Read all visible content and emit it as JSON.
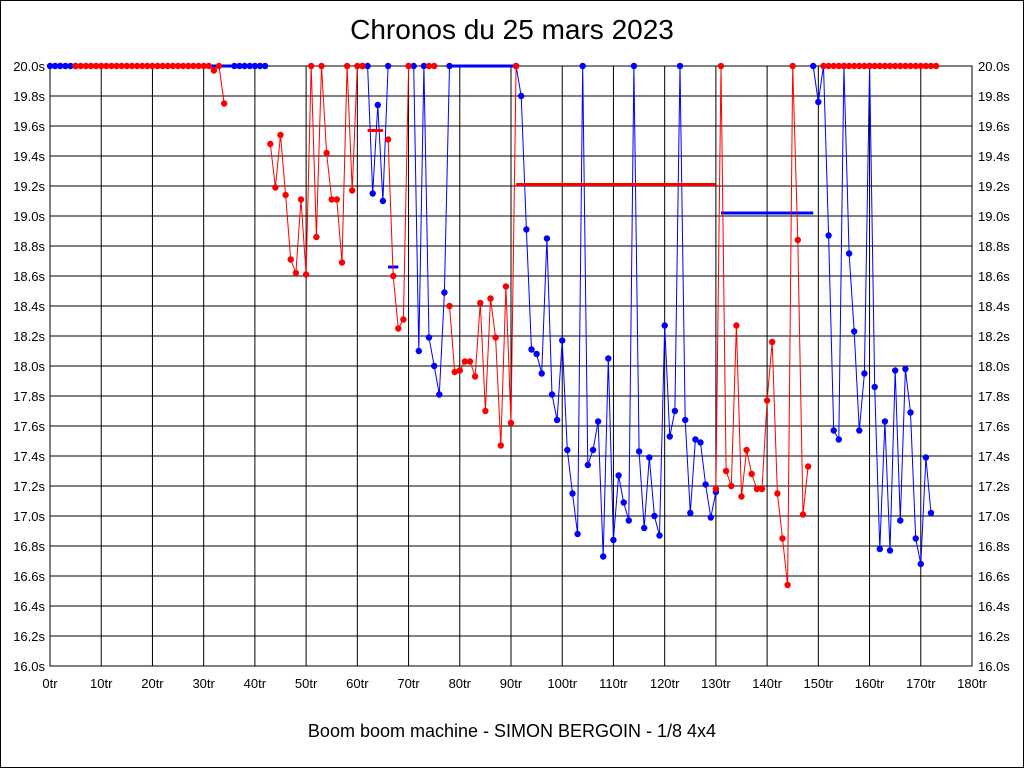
{
  "chart_data": {
    "type": "line",
    "title": "Chronos du 25 mars 2023",
    "subtitle": "Boom boom machine - SIMON BERGOIN - 1/8 4x4",
    "xlabel": "",
    "ylabel": "",
    "xlim": [
      0,
      180
    ],
    "ylim": [
      16.0,
      20.0
    ],
    "grid": true,
    "legend": "none",
    "x_ticks": [
      "0tr",
      "10tr",
      "20tr",
      "30tr",
      "40tr",
      "50tr",
      "60tr",
      "70tr",
      "80tr",
      "90tr",
      "100tr",
      "110tr",
      "120tr",
      "130tr",
      "140tr",
      "150tr",
      "160tr",
      "170tr",
      "180tr"
    ],
    "y_ticks": [
      "16.0s",
      "16.2s",
      "16.4s",
      "16.6s",
      "16.8s",
      "17.0s",
      "17.2s",
      "17.4s",
      "17.6s",
      "17.8s",
      "18.0s",
      "18.2s",
      "18.4s",
      "18.6s",
      "18.8s",
      "19.0s",
      "19.2s",
      "19.4s",
      "19.6s",
      "19.8s",
      "20.0s"
    ],
    "series": [
      {
        "color": "#0000ff",
        "segments": [
          [
            [
              0,
              20.0
            ],
            [
              1,
              20.0
            ],
            [
              2,
              20.0
            ],
            [
              3,
              20.0
            ],
            [
              4,
              20.0
            ],
            [
              5,
              20.0
            ]
          ],
          [
            [
              36,
              20.0
            ],
            [
              37,
              20.0
            ],
            [
              38,
              20.0
            ],
            [
              39,
              20.0
            ],
            [
              40,
              20.0
            ],
            [
              41,
              20.0
            ],
            [
              42,
              20.0
            ]
          ],
          [
            [
              61,
              20.0
            ],
            [
              62,
              20.0
            ],
            [
              63,
              19.15
            ],
            [
              64,
              19.74
            ],
            [
              65,
              19.1
            ],
            [
              66,
              20.0
            ]
          ],
          [
            [
              70,
              20.0
            ],
            [
              71,
              20.0
            ],
            [
              72,
              18.1
            ],
            [
              73,
              20.0
            ],
            [
              74,
              18.19
            ],
            [
              75,
              18.0
            ],
            [
              76,
              17.81
            ],
            [
              77,
              18.49
            ],
            [
              78,
              20.0
            ]
          ],
          [
            [
              91,
              20.0
            ],
            [
              92,
              19.8
            ],
            [
              93,
              18.91
            ],
            [
              94,
              18.11
            ],
            [
              95,
              18.08
            ],
            [
              96,
              17.95
            ],
            [
              97,
              18.85
            ],
            [
              98,
              17.81
            ],
            [
              99,
              17.64
            ],
            [
              100,
              18.17
            ],
            [
              101,
              17.44
            ],
            [
              102,
              17.15
            ],
            [
              103,
              16.88
            ],
            [
              104,
              20.0
            ],
            [
              105,
              17.34
            ],
            [
              106,
              17.44
            ],
            [
              107,
              17.63
            ],
            [
              108,
              16.73
            ],
            [
              109,
              18.05
            ],
            [
              110,
              16.84
            ],
            [
              111,
              17.27
            ],
            [
              112,
              17.09
            ],
            [
              113,
              16.97
            ],
            [
              114,
              20.0
            ],
            [
              115,
              17.43
            ],
            [
              116,
              16.92
            ],
            [
              117,
              17.39
            ],
            [
              118,
              17.0
            ],
            [
              119,
              16.87
            ],
            [
              120,
              18.27
            ],
            [
              121,
              17.53
            ],
            [
              122,
              17.7
            ],
            [
              123,
              20.0
            ],
            [
              124,
              17.64
            ],
            [
              125,
              17.02
            ],
            [
              126,
              17.51
            ],
            [
              127,
              17.49
            ],
            [
              128,
              17.21
            ],
            [
              129,
              16.99
            ],
            [
              130,
              17.16
            ]
          ],
          [
            [
              149,
              20.0
            ],
            [
              150,
              19.76
            ],
            [
              151,
              20.0
            ],
            [
              152,
              18.87
            ],
            [
              153,
              17.57
            ],
            [
              154,
              17.51
            ],
            [
              155,
              20.0
            ],
            [
              156,
              18.75
            ],
            [
              157,
              18.23
            ],
            [
              158,
              17.57
            ],
            [
              159,
              17.95
            ],
            [
              160,
              20.0
            ],
            [
              161,
              17.86
            ],
            [
              162,
              16.78
            ],
            [
              163,
              17.63
            ],
            [
              164,
              16.77
            ],
            [
              165,
              17.97
            ],
            [
              166,
              16.97
            ],
            [
              167,
              17.98
            ],
            [
              168,
              17.69
            ],
            [
              169,
              16.85
            ],
            [
              170,
              16.68
            ],
            [
              171,
              17.39
            ],
            [
              172,
              17.02
            ]
          ]
        ],
        "averages": [
          {
            "from": 5,
            "to": 42,
            "value": 20.0
          },
          {
            "from": 66,
            "to": 68,
            "value": 18.66
          },
          {
            "from": 78,
            "to": 91,
            "value": 20.0
          },
          {
            "from": 131,
            "to": 149,
            "value": 19.02
          }
        ]
      },
      {
        "color": "#ff0000",
        "segments": [
          [
            [
              5,
              20.0
            ],
            [
              6,
              20.0
            ],
            [
              7,
              20.0
            ],
            [
              8,
              20.0
            ],
            [
              9,
              20.0
            ],
            [
              10,
              20.0
            ],
            [
              11,
              20.0
            ],
            [
              12,
              20.0
            ],
            [
              13,
              20.0
            ],
            [
              14,
              20.0
            ],
            [
              15,
              20.0
            ],
            [
              16,
              20.0
            ],
            [
              17,
              20.0
            ],
            [
              18,
              20.0
            ],
            [
              19,
              20.0
            ],
            [
              20,
              20.0
            ],
            [
              21,
              20.0
            ],
            [
              22,
              20.0
            ],
            [
              23,
              20.0
            ],
            [
              24,
              20.0
            ],
            [
              25,
              20.0
            ],
            [
              26,
              20.0
            ],
            [
              27,
              20.0
            ],
            [
              28,
              20.0
            ],
            [
              29,
              20.0
            ],
            [
              30,
              20.0
            ],
            [
              31,
              20.0
            ],
            [
              32,
              19.97
            ],
            [
              33,
              20.0
            ],
            [
              34,
              19.75
            ]
          ],
          [
            [
              43,
              19.48
            ],
            [
              44,
              19.19
            ],
            [
              45,
              19.54
            ],
            [
              46,
              19.14
            ],
            [
              47,
              18.71
            ],
            [
              48,
              18.62
            ],
            [
              49,
              19.11
            ],
            [
              50,
              18.61
            ],
            [
              51,
              20.0
            ],
            [
              52,
              18.86
            ],
            [
              53,
              20.0
            ],
            [
              54,
              19.42
            ],
            [
              55,
              19.11
            ],
            [
              56,
              19.11
            ],
            [
              57,
              18.69
            ],
            [
              58,
              20.0
            ],
            [
              59,
              19.17
            ],
            [
              60,
              20.0
            ],
            [
              61,
              20.0
            ]
          ],
          [
            [
              66,
              19.51
            ],
            [
              67,
              18.6
            ],
            [
              68,
              18.25
            ],
            [
              69,
              18.31
            ],
            [
              70,
              20.0
            ]
          ],
          [
            [
              74,
              20.0
            ],
            [
              75,
              20.0
            ]
          ],
          [
            [
              78,
              18.4
            ],
            [
              79,
              17.96
            ],
            [
              80,
              17.97
            ],
            [
              81,
              18.03
            ],
            [
              82,
              18.03
            ],
            [
              83,
              17.93
            ],
            [
              84,
              18.42
            ],
            [
              85,
              17.7
            ],
            [
              86,
              18.45
            ],
            [
              87,
              18.19
            ],
            [
              88,
              17.47
            ],
            [
              89,
              18.53
            ],
            [
              90,
              17.62
            ],
            [
              91,
              20.0
            ]
          ],
          [
            [
              130,
              17.18
            ],
            [
              131,
              20.0
            ],
            [
              132,
              17.3
            ],
            [
              133,
              17.2
            ],
            [
              134,
              18.27
            ],
            [
              135,
              17.13
            ],
            [
              136,
              17.44
            ],
            [
              137,
              17.28
            ],
            [
              138,
              17.18
            ],
            [
              139,
              17.18
            ],
            [
              140,
              17.77
            ],
            [
              141,
              18.16
            ],
            [
              142,
              17.15
            ],
            [
              143,
              16.85
            ],
            [
              144,
              16.54
            ],
            [
              145,
              20.0
            ],
            [
              146,
              18.84
            ],
            [
              147,
              17.01
            ],
            [
              148,
              17.33
            ]
          ],
          [
            [
              151,
              20.0
            ],
            [
              152,
              20.0
            ],
            [
              153,
              20.0
            ],
            [
              154,
              20.0
            ],
            [
              155,
              20.0
            ],
            [
              156,
              20.0
            ],
            [
              157,
              20.0
            ],
            [
              158,
              20.0
            ],
            [
              159,
              20.0
            ],
            [
              160,
              20.0
            ],
            [
              161,
              20.0
            ],
            [
              162,
              20.0
            ],
            [
              163,
              20.0
            ],
            [
              164,
              20.0
            ],
            [
              165,
              20.0
            ],
            [
              166,
              20.0
            ],
            [
              167,
              20.0
            ],
            [
              168,
              20.0
            ],
            [
              169,
              20.0
            ],
            [
              170,
              20.0
            ],
            [
              171,
              20.0
            ],
            [
              172,
              20.0
            ],
            [
              173,
              20.0
            ]
          ]
        ],
        "averages": [
          {
            "from": 62,
            "to": 65,
            "value": 19.57
          },
          {
            "from": 91,
            "to": 130,
            "value": 19.21
          }
        ]
      }
    ]
  }
}
